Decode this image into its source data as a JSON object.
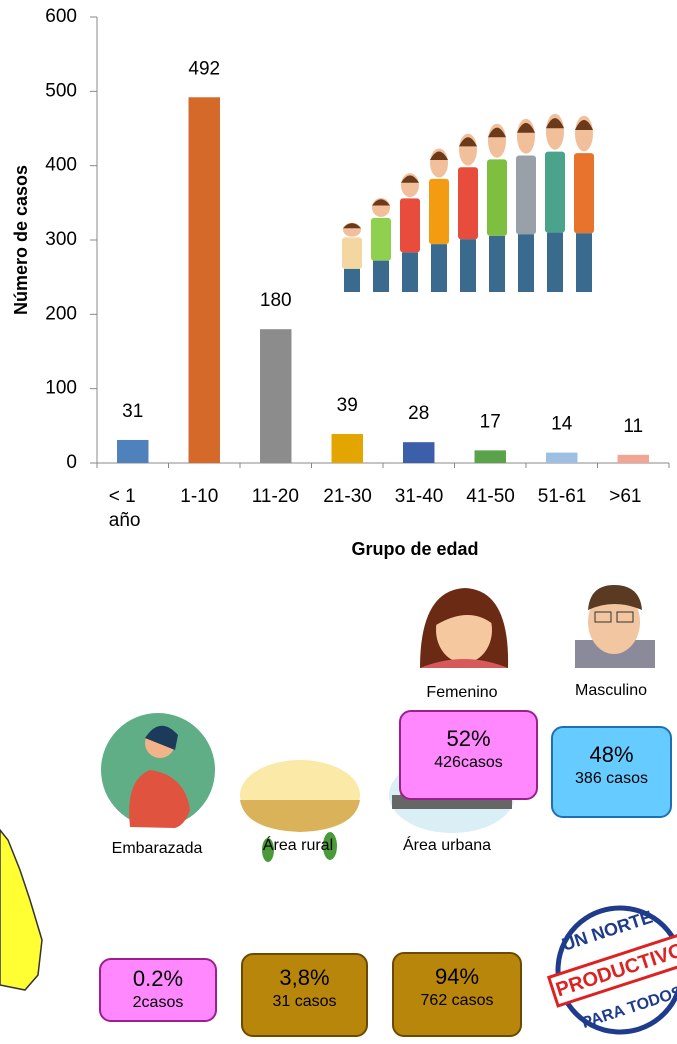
{
  "chart_data": {
    "type": "bar",
    "y_label": "Número de casos",
    "x_label": "Grupo de edad",
    "categories": [
      "< 1 año",
      "1-10",
      "11-20",
      "21-30",
      "31-40",
      "41-50",
      "51-61",
      ">61"
    ],
    "values": [
      31,
      492,
      180,
      39,
      28,
      17,
      14,
      11
    ],
    "colors": [
      "#4f81bd",
      "#d4692a",
      "#8c8c8c",
      "#e3a600",
      "#3b5fa8",
      "#5aa34a",
      "#9dbfe3",
      "#f2a593"
    ],
    "ylim": [
      0,
      600
    ],
    "yticks": [
      0,
      100,
      200,
      300,
      400,
      500,
      600
    ],
    "grid": false
  },
  "cards": [
    {
      "label": "Femenino",
      "percent": "52%",
      "cases": "426casos"
    },
    {
      "label": "Masculino",
      "percent": "48%",
      "cases": "386 casos"
    },
    {
      "label": "Embarazada",
      "percent": "0.2%",
      "cases": "2casos"
    },
    {
      "label": "Área rural",
      "percent": "3,8%",
      "cases": "31 casos"
    },
    {
      "label": "Área urbana",
      "percent": "94%",
      "cases": "762 casos"
    }
  ],
  "logo": {
    "top": "UN NORTE",
    "middle": "PRODUCTIVO",
    "bottom": "PARA TODOS"
  }
}
